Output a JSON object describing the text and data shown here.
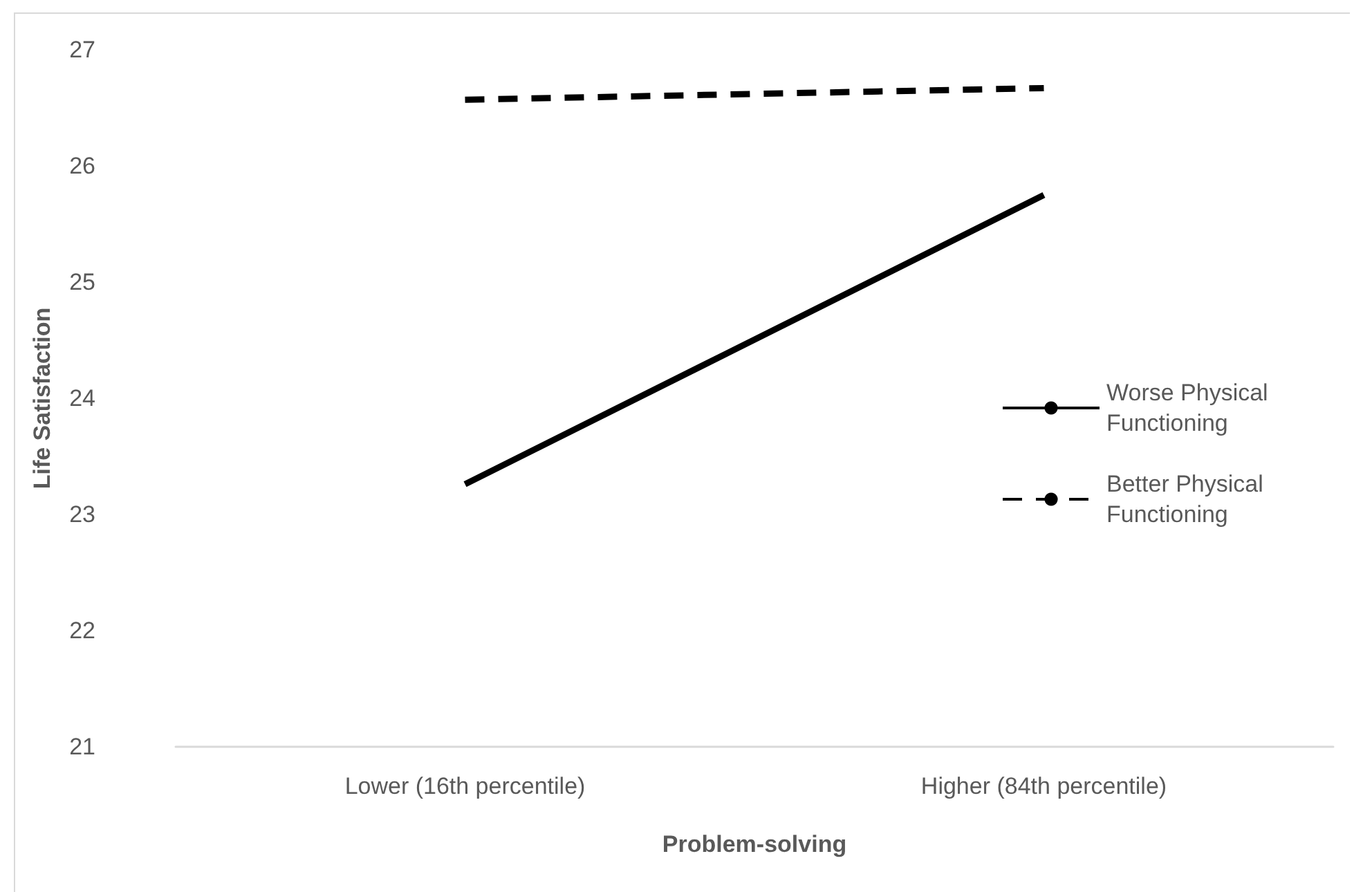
{
  "chart_data": {
    "type": "line",
    "xlabel": "Problem-solving",
    "ylabel": "Life Satisfaction",
    "categories": [
      "Lower (16th percentile)",
      "Higher (84th percentile)"
    ],
    "series": [
      {
        "name": "Worse Physical Functioning",
        "color": "#000000",
        "line_style": "solid",
        "values": [
          23.26,
          25.75
        ]
      },
      {
        "name": "Better Physical Functioning",
        "color": "#000000",
        "line_style": "dashed",
        "values": [
          26.57,
          26.67
        ]
      }
    ],
    "ylim": [
      21,
      27
    ],
    "yticks": [
      21,
      22,
      23,
      24,
      25,
      26,
      27
    ],
    "grid": false,
    "legend": "right",
    "marker": "none"
  }
}
